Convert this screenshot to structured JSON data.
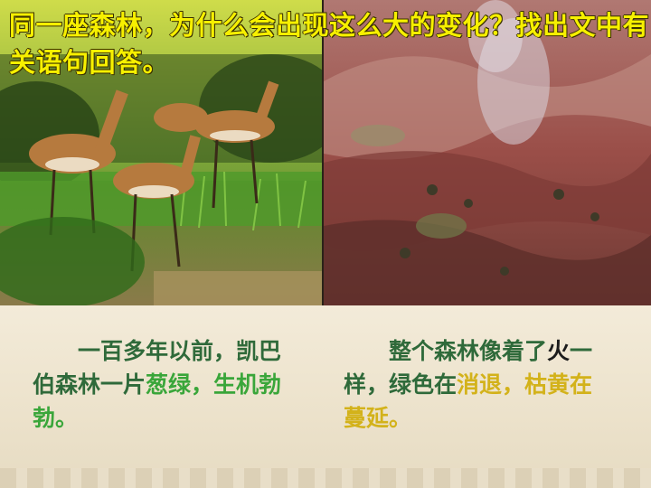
{
  "title": "同一座森林，为什么会出现这么大的变化？找出文中有关语句回答。",
  "caption_left": {
    "part1": "一百多年以前，凯巴伯森林一片",
    "part2": "葱绿",
    "part3": "，",
    "part4": "生机勃勃",
    "part5": "。"
  },
  "caption_right": {
    "part1": "整个森林像着了",
    "part2": "火",
    "part3": "一样，绿色在",
    "part4": "消退",
    "part5": "，枯黄在",
    "part6": "蔓延",
    "part7": "。"
  },
  "colors": {
    "title": "#f7f000",
    "caption_base": "#2f6a3a",
    "highlight_green": "#3aa63a",
    "highlight_gold": "#d3b21a"
  },
  "images": {
    "left": "deer-in-green-forest",
    "right": "burned-barren-hillside"
  }
}
